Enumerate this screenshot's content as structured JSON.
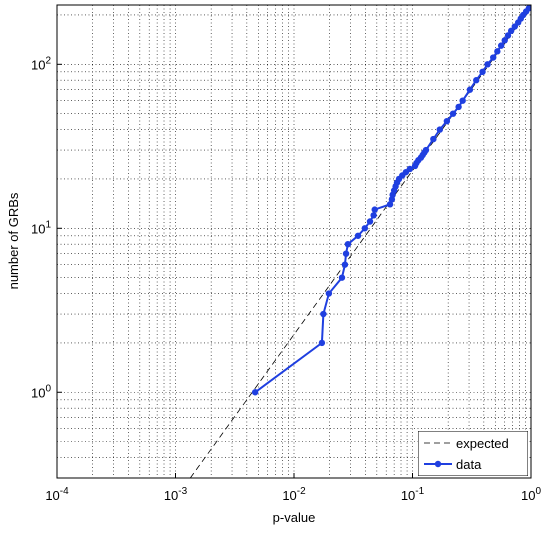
{
  "chart_data": {
    "type": "line",
    "xlabel": "p-value",
    "ylabel": "number of GRBs",
    "log_x": true,
    "log_y": true,
    "grid": true,
    "minor_grid": true,
    "legend": "lower right",
    "xlim": [
      0.0001,
      1
    ],
    "ylim": [
      0.3,
      230
    ],
    "xticks": [
      {
        "value": 0.0001,
        "label": "10",
        "exponent": "-4"
      },
      {
        "value": 0.001,
        "label": "10",
        "exponent": "-3"
      },
      {
        "value": 0.01,
        "label": "10",
        "exponent": "-2"
      },
      {
        "value": 0.1,
        "label": "10",
        "exponent": "-1"
      },
      {
        "value": 1,
        "label": "10",
        "exponent": "0"
      }
    ],
    "yticks": [
      {
        "value": 1,
        "label": "10",
        "exponent": "0"
      },
      {
        "value": 10,
        "label": "10",
        "exponent": "1"
      },
      {
        "value": 100,
        "label": "10",
        "exponent": "2"
      }
    ],
    "series": [
      {
        "name": "expected",
        "color": "#000000",
        "dashed": true,
        "markers": false,
        "x": [
          0.001333,
          1
        ],
        "values": [
          0.3,
          225
        ]
      },
      {
        "name": "data",
        "color": "#1f3fe0",
        "dashed": false,
        "markers": true,
        "x": [
          0.0047,
          0.0172,
          0.0177,
          0.0197,
          0.0254,
          0.0269,
          0.0275,
          0.0285,
          0.0347,
          0.0396,
          0.0438,
          0.047,
          0.048,
          0.0646,
          0.067,
          0.068,
          0.07,
          0.072,
          0.074,
          0.077,
          0.082,
          0.088,
          0.095,
          0.105,
          0.108,
          0.112,
          0.118,
          0.122,
          0.126,
          0.13,
          0.15,
          0.17,
          0.195,
          0.22,
          0.245,
          0.265,
          0.305,
          0.345,
          0.39,
          0.43,
          0.48,
          0.52,
          0.56,
          0.6,
          0.64,
          0.68,
          0.73,
          0.78,
          0.82,
          0.86,
          0.91,
          0.96,
          0.99
        ],
        "values": [
          1,
          2,
          3,
          4,
          5,
          6,
          7,
          8,
          9,
          10,
          11,
          12,
          13,
          14,
          15,
          16,
          17,
          18,
          19,
          20,
          21,
          22,
          23,
          24,
          25,
          26,
          27,
          28,
          29,
          30,
          35,
          40,
          45,
          50,
          55,
          60,
          70,
          80,
          90,
          100,
          110,
          120,
          130,
          140,
          150,
          160,
          170,
          180,
          190,
          200,
          210,
          220,
          225
        ]
      }
    ]
  }
}
